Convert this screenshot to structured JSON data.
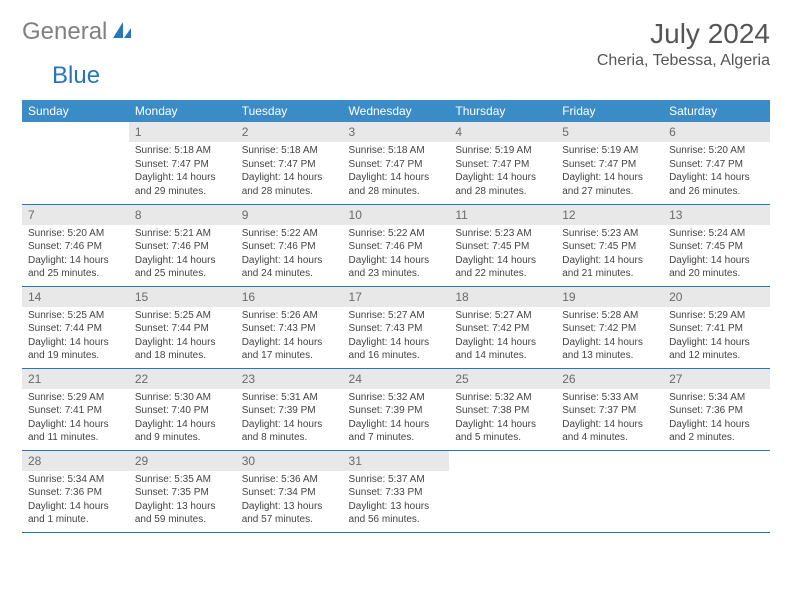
{
  "logo": {
    "text_gray": "General",
    "text_blue": "Blue"
  },
  "header": {
    "title": "July 2024",
    "location": "Cheria, Tebessa, Algeria"
  },
  "colors": {
    "header_bg": "#3b8bc6",
    "header_text": "#ffffff",
    "daynum_bg": "#e8e8e8",
    "daynum_text": "#6a6a6a",
    "row_border": "#2876b8",
    "body_text": "#444444",
    "logo_gray": "#808080",
    "logo_blue": "#2876b8"
  },
  "weekdays": [
    "Sunday",
    "Monday",
    "Tuesday",
    "Wednesday",
    "Thursday",
    "Friday",
    "Saturday"
  ],
  "weeks": [
    [
      null,
      {
        "n": "1",
        "sr": "Sunrise: 5:18 AM",
        "ss": "Sunset: 7:47 PM",
        "d1": "Daylight: 14 hours",
        "d2": "and 29 minutes."
      },
      {
        "n": "2",
        "sr": "Sunrise: 5:18 AM",
        "ss": "Sunset: 7:47 PM",
        "d1": "Daylight: 14 hours",
        "d2": "and 28 minutes."
      },
      {
        "n": "3",
        "sr": "Sunrise: 5:18 AM",
        "ss": "Sunset: 7:47 PM",
        "d1": "Daylight: 14 hours",
        "d2": "and 28 minutes."
      },
      {
        "n": "4",
        "sr": "Sunrise: 5:19 AM",
        "ss": "Sunset: 7:47 PM",
        "d1": "Daylight: 14 hours",
        "d2": "and 28 minutes."
      },
      {
        "n": "5",
        "sr": "Sunrise: 5:19 AM",
        "ss": "Sunset: 7:47 PM",
        "d1": "Daylight: 14 hours",
        "d2": "and 27 minutes."
      },
      {
        "n": "6",
        "sr": "Sunrise: 5:20 AM",
        "ss": "Sunset: 7:47 PM",
        "d1": "Daylight: 14 hours",
        "d2": "and 26 minutes."
      }
    ],
    [
      {
        "n": "7",
        "sr": "Sunrise: 5:20 AM",
        "ss": "Sunset: 7:46 PM",
        "d1": "Daylight: 14 hours",
        "d2": "and 25 minutes."
      },
      {
        "n": "8",
        "sr": "Sunrise: 5:21 AM",
        "ss": "Sunset: 7:46 PM",
        "d1": "Daylight: 14 hours",
        "d2": "and 25 minutes."
      },
      {
        "n": "9",
        "sr": "Sunrise: 5:22 AM",
        "ss": "Sunset: 7:46 PM",
        "d1": "Daylight: 14 hours",
        "d2": "and 24 minutes."
      },
      {
        "n": "10",
        "sr": "Sunrise: 5:22 AM",
        "ss": "Sunset: 7:46 PM",
        "d1": "Daylight: 14 hours",
        "d2": "and 23 minutes."
      },
      {
        "n": "11",
        "sr": "Sunrise: 5:23 AM",
        "ss": "Sunset: 7:45 PM",
        "d1": "Daylight: 14 hours",
        "d2": "and 22 minutes."
      },
      {
        "n": "12",
        "sr": "Sunrise: 5:23 AM",
        "ss": "Sunset: 7:45 PM",
        "d1": "Daylight: 14 hours",
        "d2": "and 21 minutes."
      },
      {
        "n": "13",
        "sr": "Sunrise: 5:24 AM",
        "ss": "Sunset: 7:45 PM",
        "d1": "Daylight: 14 hours",
        "d2": "and 20 minutes."
      }
    ],
    [
      {
        "n": "14",
        "sr": "Sunrise: 5:25 AM",
        "ss": "Sunset: 7:44 PM",
        "d1": "Daylight: 14 hours",
        "d2": "and 19 minutes."
      },
      {
        "n": "15",
        "sr": "Sunrise: 5:25 AM",
        "ss": "Sunset: 7:44 PM",
        "d1": "Daylight: 14 hours",
        "d2": "and 18 minutes."
      },
      {
        "n": "16",
        "sr": "Sunrise: 5:26 AM",
        "ss": "Sunset: 7:43 PM",
        "d1": "Daylight: 14 hours",
        "d2": "and 17 minutes."
      },
      {
        "n": "17",
        "sr": "Sunrise: 5:27 AM",
        "ss": "Sunset: 7:43 PM",
        "d1": "Daylight: 14 hours",
        "d2": "and 16 minutes."
      },
      {
        "n": "18",
        "sr": "Sunrise: 5:27 AM",
        "ss": "Sunset: 7:42 PM",
        "d1": "Daylight: 14 hours",
        "d2": "and 14 minutes."
      },
      {
        "n": "19",
        "sr": "Sunrise: 5:28 AM",
        "ss": "Sunset: 7:42 PM",
        "d1": "Daylight: 14 hours",
        "d2": "and 13 minutes."
      },
      {
        "n": "20",
        "sr": "Sunrise: 5:29 AM",
        "ss": "Sunset: 7:41 PM",
        "d1": "Daylight: 14 hours",
        "d2": "and 12 minutes."
      }
    ],
    [
      {
        "n": "21",
        "sr": "Sunrise: 5:29 AM",
        "ss": "Sunset: 7:41 PM",
        "d1": "Daylight: 14 hours",
        "d2": "and 11 minutes."
      },
      {
        "n": "22",
        "sr": "Sunrise: 5:30 AM",
        "ss": "Sunset: 7:40 PM",
        "d1": "Daylight: 14 hours",
        "d2": "and 9 minutes."
      },
      {
        "n": "23",
        "sr": "Sunrise: 5:31 AM",
        "ss": "Sunset: 7:39 PM",
        "d1": "Daylight: 14 hours",
        "d2": "and 8 minutes."
      },
      {
        "n": "24",
        "sr": "Sunrise: 5:32 AM",
        "ss": "Sunset: 7:39 PM",
        "d1": "Daylight: 14 hours",
        "d2": "and 7 minutes."
      },
      {
        "n": "25",
        "sr": "Sunrise: 5:32 AM",
        "ss": "Sunset: 7:38 PM",
        "d1": "Daylight: 14 hours",
        "d2": "and 5 minutes."
      },
      {
        "n": "26",
        "sr": "Sunrise: 5:33 AM",
        "ss": "Sunset: 7:37 PM",
        "d1": "Daylight: 14 hours",
        "d2": "and 4 minutes."
      },
      {
        "n": "27",
        "sr": "Sunrise: 5:34 AM",
        "ss": "Sunset: 7:36 PM",
        "d1": "Daylight: 14 hours",
        "d2": "and 2 minutes."
      }
    ],
    [
      {
        "n": "28",
        "sr": "Sunrise: 5:34 AM",
        "ss": "Sunset: 7:36 PM",
        "d1": "Daylight: 14 hours",
        "d2": "and 1 minute."
      },
      {
        "n": "29",
        "sr": "Sunrise: 5:35 AM",
        "ss": "Sunset: 7:35 PM",
        "d1": "Daylight: 13 hours",
        "d2": "and 59 minutes."
      },
      {
        "n": "30",
        "sr": "Sunrise: 5:36 AM",
        "ss": "Sunset: 7:34 PM",
        "d1": "Daylight: 13 hours",
        "d2": "and 57 minutes."
      },
      {
        "n": "31",
        "sr": "Sunrise: 5:37 AM",
        "ss": "Sunset: 7:33 PM",
        "d1": "Daylight: 13 hours",
        "d2": "and 56 minutes."
      },
      null,
      null,
      null
    ]
  ]
}
